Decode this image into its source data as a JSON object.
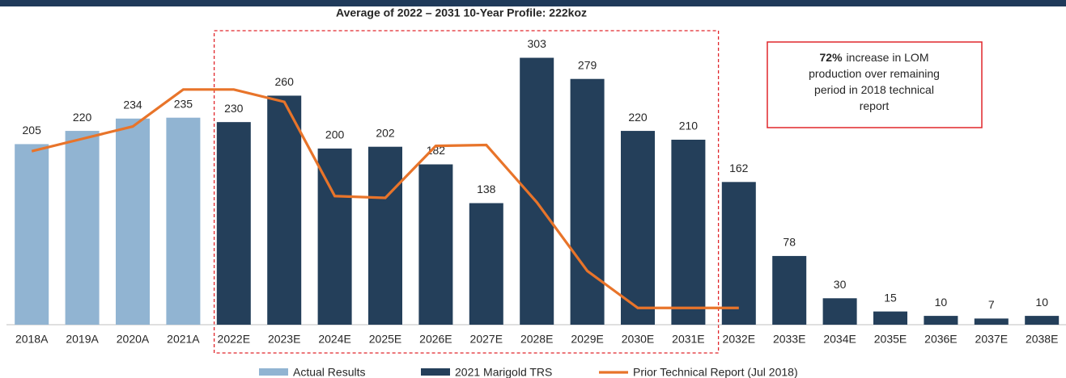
{
  "chart_data": {
    "type": "bar",
    "title": "Average of 2022 – 2031 10-Year Profile: 222koz",
    "categories": [
      "2018A",
      "2019A",
      "2020A",
      "2021A",
      "2022E",
      "2023E",
      "2024E",
      "2025E",
      "2026E",
      "2027E",
      "2028E",
      "2029E",
      "2030E",
      "2031E",
      "2032E",
      "2033E",
      "2034E",
      "2035E",
      "2036E",
      "2037E",
      "2038E"
    ],
    "series": [
      {
        "name": "Actual Results",
        "color": "#91b4d2",
        "kind": "bar",
        "values": [
          205,
          220,
          234,
          235,
          null,
          null,
          null,
          null,
          null,
          null,
          null,
          null,
          null,
          null,
          null,
          null,
          null,
          null,
          null,
          null,
          null
        ]
      },
      {
        "name": "2021 Marigold TRS",
        "color": "#243f5a",
        "kind": "bar",
        "values": [
          null,
          null,
          null,
          null,
          230,
          260,
          200,
          202,
          182,
          138,
          303,
          279,
          220,
          210,
          162,
          78,
          30,
          15,
          10,
          7,
          10
        ]
      },
      {
        "name": "Prior Technical Report (Jul 2018)",
        "color": "#e8742a",
        "kind": "line",
        "values": [
          197,
          211,
          225,
          267,
          267,
          253,
          146,
          144,
          203,
          204,
          139,
          61,
          19,
          19,
          19,
          null,
          null,
          null,
          null,
          null,
          null
        ]
      }
    ],
    "annotation": {
      "bold": "72%",
      "lines": [
        "increase in LOM",
        "production over remaining",
        "period in 2018 technical",
        "report"
      ]
    },
    "ylim": [
      0,
      320
    ]
  }
}
